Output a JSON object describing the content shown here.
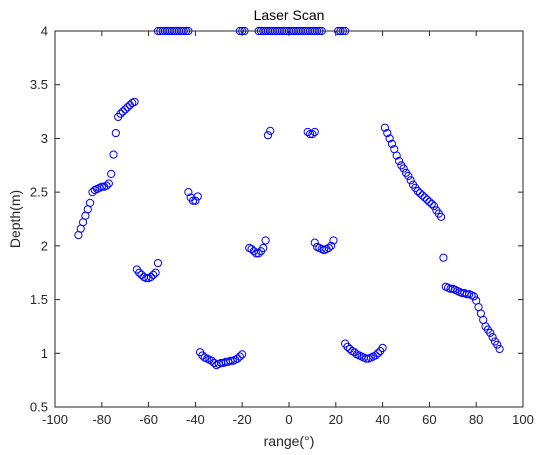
{
  "chart_data": {
    "type": "scatter",
    "title": "Laser Scan",
    "xlabel": "range(°)",
    "ylabel": "Depth(m)",
    "xlim": [
      -100,
      100
    ],
    "ylim": [
      0.5,
      4
    ],
    "x_ticks": [
      -100,
      -80,
      -60,
      -40,
      -20,
      0,
      20,
      40,
      60,
      80,
      100
    ],
    "x_tick_labels": [
      "-100",
      "-80",
      "-60",
      "-40",
      "-20",
      "0",
      "20",
      "40",
      "60",
      "80",
      "100"
    ],
    "y_ticks": [
      0.5,
      1,
      1.5,
      2,
      2.5,
      3,
      3.5,
      4
    ],
    "y_tick_labels": [
      "0.5",
      "1",
      "1.5",
      "2",
      "2.5",
      "3",
      "3.5",
      "4"
    ],
    "grid": false,
    "marker": "open-circle",
    "marker_color": "#0000ff",
    "series": [
      {
        "x": [
          -90,
          -89,
          -88,
          -87,
          -86,
          -85,
          -84,
          -83,
          -82,
          -81,
          -80,
          -79,
          -78,
          -77,
          -76,
          -75,
          -74,
          -73,
          -72,
          -71,
          -70,
          -69,
          -68,
          -67,
          -66,
          -65,
          -64,
          -63,
          -62,
          -61,
          -60,
          -59,
          -58,
          -57,
          -56,
          -43,
          -42,
          -41,
          -40,
          -39,
          -38,
          -37,
          -36,
          -35,
          -34,
          -33,
          -32,
          -31,
          -30,
          -29,
          -28,
          -27,
          -26,
          -25,
          -24,
          -23,
          -22,
          -21,
          -20,
          -17,
          -16,
          -15,
          -14,
          -13,
          -12,
          -11,
          -10,
          -9,
          -8,
          8,
          9,
          10,
          11,
          11,
          12,
          13,
          14,
          15,
          16,
          17,
          18,
          19,
          24,
          25,
          26,
          27,
          28,
          29,
          30,
          31,
          32,
          33,
          34,
          35,
          36,
          37,
          38,
          39,
          40,
          41,
          42,
          43,
          44,
          45,
          46,
          47,
          48,
          49,
          50,
          51,
          52,
          53,
          54,
          55,
          56,
          57,
          58,
          59,
          60,
          61,
          62,
          63,
          64,
          65,
          66,
          67,
          68,
          69,
          70,
          71,
          72,
          73,
          74,
          75,
          76,
          77,
          78,
          79,
          80,
          81,
          82,
          83,
          84,
          85,
          86,
          87,
          88,
          89,
          90,
          -56,
          -55,
          -54,
          -53,
          -52,
          -51,
          -50,
          -49,
          -48,
          -47,
          -46,
          -45,
          -44,
          -43,
          -21,
          -20,
          -19,
          -13,
          -12,
          -11,
          -10,
          -9,
          -8,
          -7,
          -6,
          -5,
          -4,
          -3,
          -2,
          -1,
          0,
          1,
          2,
          3,
          4,
          5,
          6,
          7,
          8,
          9,
          10,
          11,
          12,
          13,
          14,
          21,
          22,
          23,
          24
        ],
        "y": [
          2.1,
          2.16,
          2.22,
          2.28,
          2.34,
          2.4,
          2.5,
          2.52,
          2.53,
          2.54,
          2.55,
          2.55,
          2.56,
          2.58,
          2.67,
          2.85,
          3.05,
          3.2,
          3.23,
          3.25,
          3.27,
          3.29,
          3.31,
          3.33,
          3.34,
          1.78,
          1.75,
          1.73,
          1.71,
          1.7,
          1.7,
          1.71,
          1.73,
          1.75,
          1.84,
          2.5,
          2.45,
          2.42,
          2.42,
          2.46,
          1.01,
          0.98,
          0.96,
          0.95,
          0.94,
          0.93,
          0.91,
          0.89,
          0.9,
          0.91,
          0.91,
          0.92,
          0.92,
          0.93,
          0.93,
          0.94,
          0.95,
          0.97,
          0.99,
          1.98,
          1.97,
          1.95,
          1.93,
          1.93,
          1.95,
          1.98,
          2.05,
          3.03,
          3.07,
          3.06,
          3.04,
          3.04,
          3.06,
          2.03,
          1.99,
          1.98,
          1.97,
          1.96,
          1.97,
          1.98,
          2.0,
          2.05,
          1.09,
          1.06,
          1.04,
          1.02,
          1.01,
          0.99,
          0.98,
          0.97,
          0.96,
          0.95,
          0.95,
          0.96,
          0.97,
          0.98,
          1.0,
          1.02,
          1.05,
          3.1,
          3.05,
          3.0,
          2.95,
          2.9,
          2.84,
          2.79,
          2.75,
          2.72,
          2.68,
          2.65,
          2.61,
          2.57,
          2.54,
          2.51,
          2.49,
          2.47,
          2.45,
          2.43,
          2.41,
          2.39,
          2.37,
          2.33,
          2.3,
          2.27,
          1.89,
          1.62,
          1.61,
          1.6,
          1.6,
          1.59,
          1.58,
          1.57,
          1.56,
          1.56,
          1.55,
          1.55,
          1.54,
          1.53,
          1.49,
          1.43,
          1.37,
          1.31,
          1.25,
          1.22,
          1.19,
          1.15,
          1.11,
          1.08,
          1.04,
          4,
          4,
          4,
          4,
          4,
          4,
          4,
          4,
          4,
          4,
          4,
          4,
          4,
          4,
          4,
          4,
          4,
          4,
          4,
          4,
          4,
          4,
          4,
          4,
          4,
          4,
          4,
          4,
          4,
          4,
          4,
          4,
          4,
          4,
          4,
          4,
          4,
          4,
          4,
          4,
          4,
          4,
          4,
          4,
          4,
          4,
          4,
          4,
          4
        ]
      }
    ]
  }
}
